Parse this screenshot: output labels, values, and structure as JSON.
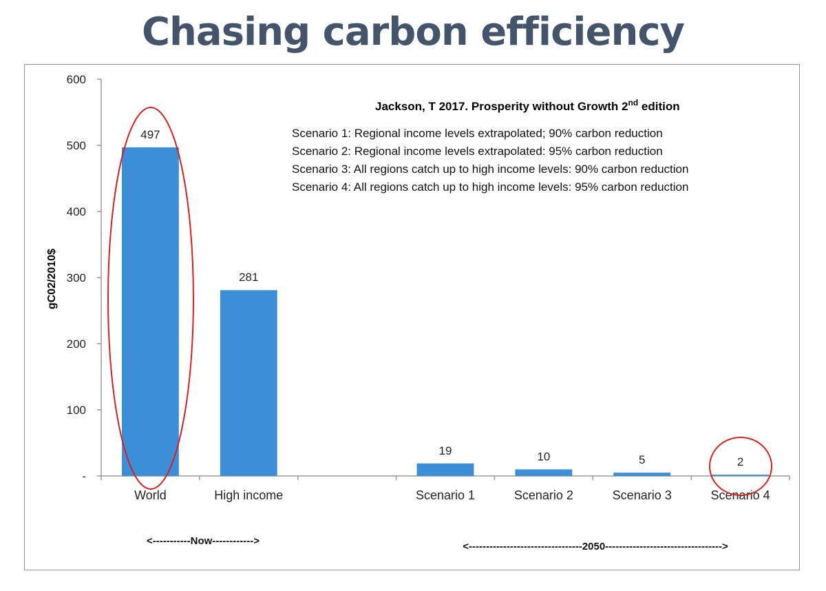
{
  "title": "Chasing carbon efficiency",
  "colors": {
    "title": "#44546a",
    "bar": "#3c8fd6",
    "highlight": "#d42020",
    "axis": "#9a9a9a"
  },
  "chart_data": {
    "type": "bar",
    "categories": [
      "World",
      "High income",
      "",
      "Scenario 1",
      "Scenario 2",
      "Scenario 3",
      "Scenario 4"
    ],
    "values": [
      497,
      281,
      null,
      19,
      10,
      5,
      2
    ],
    "data_labels": [
      "497",
      "281",
      "",
      "19",
      "10",
      "5",
      "2"
    ],
    "ylabel": "gC02/2010$",
    "ylim": [
      0,
      600
    ],
    "yticks": [
      0,
      100,
      200,
      300,
      400,
      500,
      600
    ],
    "ytick_labels": [
      "-",
      "100",
      "200",
      "300",
      "400",
      "500",
      "600"
    ],
    "grid": false,
    "source_line": {
      "text": "Jackson, T 2017. Prosperity without Growth 2",
      "sup": "nd",
      "suffix": " edition"
    },
    "scenarios": [
      "Scenario 1: Regional income levels extrapolated; 90% carbon reduction",
      "Scenario 2: Regional income levels extrapolated: 95% carbon reduction",
      "Scenario 3: All regions catch up to high income levels: 90% carbon reduction",
      "Scenario 4: All regions catch up to high income levels: 95% carbon reduction"
    ],
    "group_spans": [
      {
        "label": "<-----------Now------------>",
        "categories": [
          "World",
          "High income"
        ]
      },
      {
        "label": "<---------------------------------2050---------------------------------->",
        "categories": [
          "Scenario 1",
          "Scenario 2",
          "Scenario 3",
          "Scenario 4"
        ]
      }
    ],
    "highlighted": [
      "World",
      "Scenario 4"
    ]
  }
}
